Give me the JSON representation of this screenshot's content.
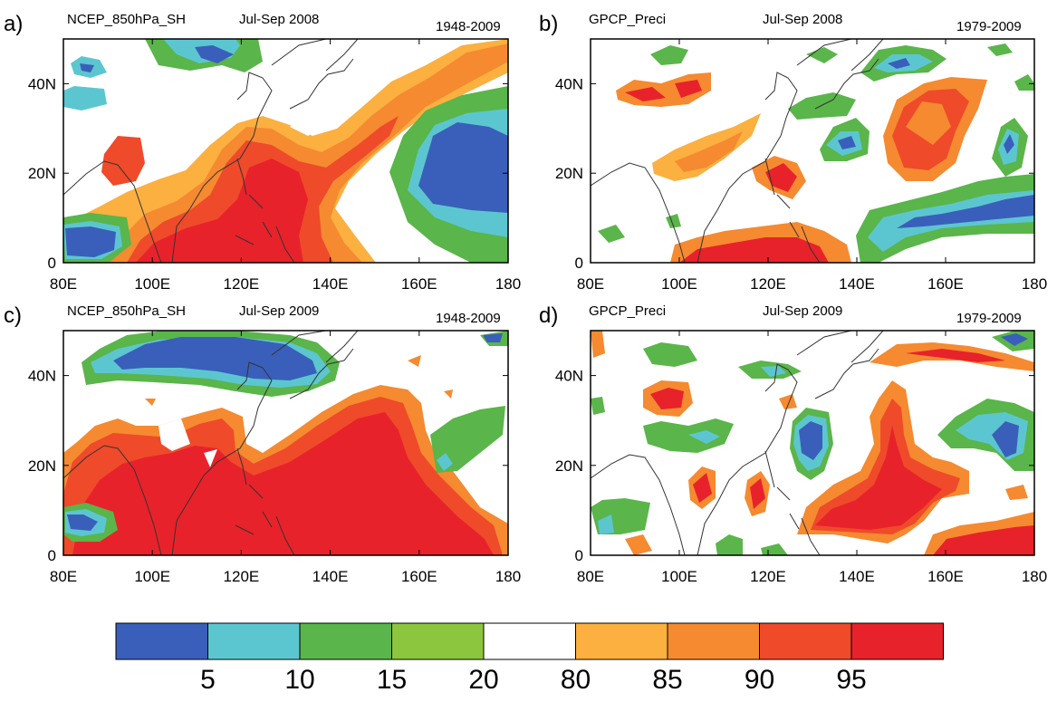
{
  "panels": [
    {
      "letter": "a)",
      "left": "NCEP_850hPa_SH",
      "center": "Jul-Sep 2008",
      "right": "1948-2009"
    },
    {
      "letter": "b)",
      "left": "GPCP_Preci",
      "center": "Jul-Sep 2008",
      "right": "1979-2009"
    },
    {
      "letter": "c)",
      "left": "NCEP_850hPa_SH",
      "center": "Jul-Sep 2009",
      "right": "1948-2009"
    },
    {
      "letter": "d)",
      "left": "GPCP_Preci",
      "center": "Jul-Sep 2009",
      "right": "1979-2009"
    }
  ],
  "axes": {
    "x_ticks": [
      "80E",
      "100E",
      "120E",
      "140E",
      "160E",
      "180"
    ],
    "y_ticks": [
      "40N",
      "20N",
      "0"
    ]
  },
  "colorbar": {
    "colors": [
      "#3a5fba",
      "#5cc6d0",
      "#5ab54a",
      "#8cc63f",
      "#ffffff",
      "#fbb040",
      "#f58a30",
      "#ef4a2a",
      "#e8222a"
    ],
    "labels": [
      "5",
      "10",
      "15",
      "20",
      "80",
      "85",
      "90",
      "95"
    ]
  }
}
